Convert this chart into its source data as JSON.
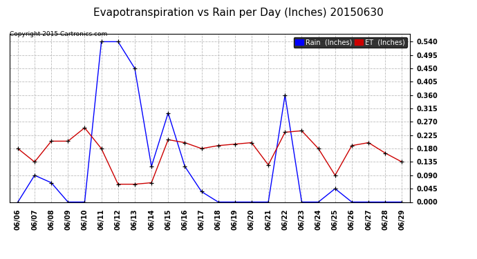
{
  "title": "Evapotranspiration vs Rain per Day (Inches) 20150630",
  "copyright": "Copyright 2015 Cartronics.com",
  "dates": [
    "06/06",
    "06/07",
    "06/08",
    "06/09",
    "06/10",
    "06/11",
    "06/12",
    "06/13",
    "06/14",
    "06/15",
    "06/16",
    "06/17",
    "06/18",
    "06/19",
    "06/20",
    "06/21",
    "06/22",
    "06/23",
    "06/24",
    "06/25",
    "06/26",
    "06/27",
    "06/28",
    "06/29"
  ],
  "rain": [
    0.0,
    0.09,
    0.065,
    0.0,
    0.0,
    0.54,
    0.54,
    0.45,
    0.12,
    0.3,
    0.12,
    0.035,
    0.0,
    0.0,
    0.0,
    0.0,
    0.36,
    0.0,
    0.0,
    0.045,
    0.0,
    0.0,
    0.0,
    0.0
  ],
  "et": [
    0.18,
    0.135,
    0.205,
    0.205,
    0.25,
    0.18,
    0.06,
    0.06,
    0.065,
    0.21,
    0.2,
    0.18,
    0.19,
    0.195,
    0.2,
    0.125,
    0.235,
    0.24,
    0.18,
    0.09,
    0.19,
    0.2,
    0.165,
    0.135
  ],
  "ylim": [
    0,
    0.567
  ],
  "yticks": [
    0.0,
    0.045,
    0.09,
    0.135,
    0.18,
    0.225,
    0.27,
    0.315,
    0.36,
    0.405,
    0.45,
    0.495,
    0.54
  ],
  "rain_color": "#0000ff",
  "et_color": "#cc0000",
  "grid_color": "#bbbbbb",
  "bg_color": "#ffffff",
  "title_fontsize": 11,
  "tick_fontsize": 7,
  "copyright_fontsize": 6.5,
  "legend_rain_label": "Rain  (Inches)",
  "legend_et_label": "ET  (Inches)"
}
